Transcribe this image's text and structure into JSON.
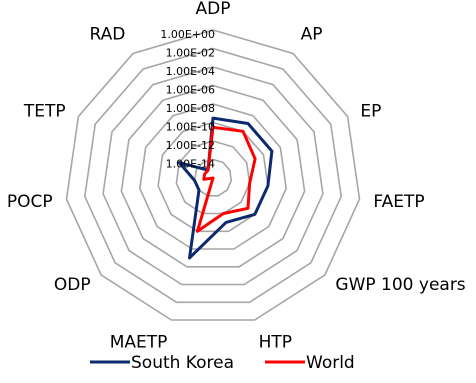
{
  "chart_data": {
    "type": "radar",
    "log_scale": true,
    "grid": true,
    "legend_position": "bottom",
    "axes": [
      "ADP",
      "AP",
      "EP",
      "FAETP",
      "GWP 100 years",
      "HTP",
      "MAETP",
      "ODP",
      "POCP",
      "TETP",
      "RAD"
    ],
    "tick_labels": [
      "1.00E+00",
      "1.00E-02",
      "1.00E-04",
      "1.00E-06",
      "1.00E-08",
      "1.00E-10",
      "1.00E-12",
      "1.00E-14"
    ],
    "tick_values": [
      1.0,
      0.01,
      0.0001,
      1e-06,
      1e-08,
      1e-10,
      1e-12,
      1e-14
    ],
    "range": [
      1e-16,
      1.0
    ],
    "series": [
      {
        "name": "South Korea",
        "color": "#0d2a6e",
        "values": [
          3e-10,
          1e-09,
          1e-09,
          1e-10,
          1e-10,
          1e-11,
          1e-07,
          1e-14,
          1e-14,
          1e-12,
          1e-15
        ]
      },
      {
        "name": "World",
        "color": "#ff0000",
        "values": [
          3e-11,
          1e-10,
          1e-11,
          1e-12,
          1e-11,
          1e-12,
          1e-10,
          1e-16,
          1e-15,
          1e-15,
          1e-15
        ]
      }
    ]
  }
}
